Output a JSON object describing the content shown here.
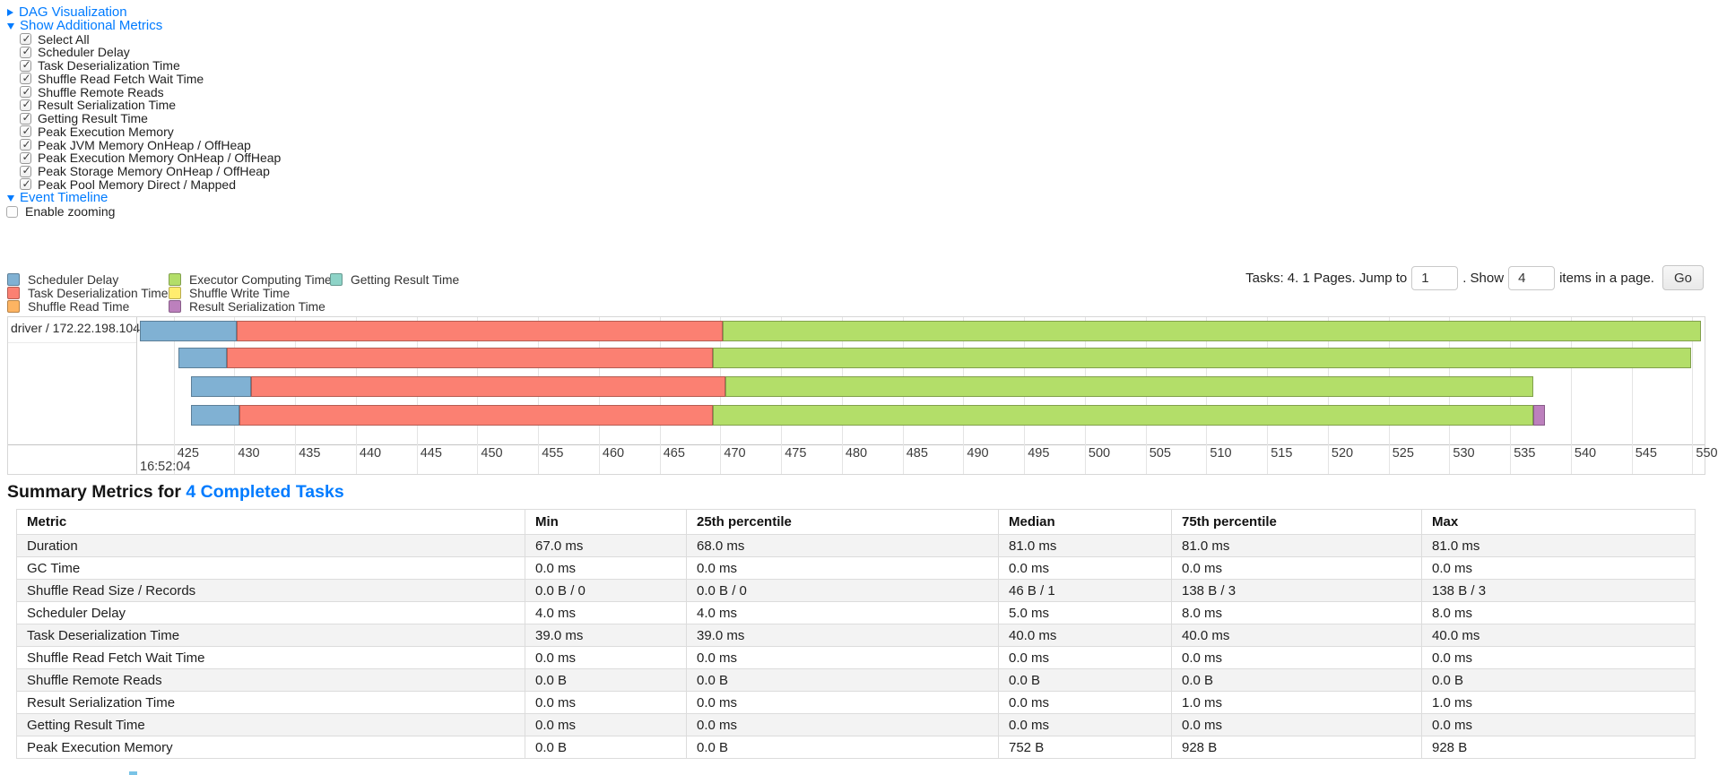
{
  "colors": {
    "link": "#007bff",
    "scheduler_delay": "#80B1D3",
    "task_deserialization": "#FB8072",
    "shuffle_read": "#FDB462",
    "executor_computing": "#B3DE69",
    "shuffle_write": "#FFED6F",
    "result_serialization": "#BC80BD",
    "getting_result": "#8DD3C7"
  },
  "sections": {
    "dag": {
      "label": "DAG Visualization",
      "expanded": false
    },
    "metrics": {
      "label": "Show Additional Metrics",
      "expanded": true
    },
    "timeline": {
      "label": "Event Timeline",
      "expanded": true
    }
  },
  "metric_checkboxes": [
    {
      "label": "Select All",
      "checked": true
    },
    {
      "label": "Scheduler Delay",
      "checked": true
    },
    {
      "label": "Task Deserialization Time",
      "checked": true
    },
    {
      "label": "Shuffle Read Fetch Wait Time",
      "checked": true
    },
    {
      "label": "Shuffle Remote Reads",
      "checked": true
    },
    {
      "label": "Result Serialization Time",
      "checked": true
    },
    {
      "label": "Getting Result Time",
      "checked": true
    },
    {
      "label": "Peak Execution Memory",
      "checked": true
    },
    {
      "label": "Peak JVM Memory OnHeap / OffHeap",
      "checked": true
    },
    {
      "label": "Peak Execution Memory OnHeap / OffHeap",
      "checked": true
    },
    {
      "label": "Peak Storage Memory OnHeap / OffHeap",
      "checked": true
    },
    {
      "label": "Peak Pool Memory Direct / Mapped",
      "checked": true
    }
  ],
  "enable_zooming": {
    "label": "Enable zooming",
    "checked": false
  },
  "legend": {
    "columns": [
      [
        {
          "label": "Scheduler Delay",
          "key": "scheduler_delay"
        },
        {
          "label": "Task Deserialization Time",
          "key": "task_deserialization"
        },
        {
          "label": "Shuffle Read Time",
          "key": "shuffle_read"
        }
      ],
      [
        {
          "label": "Executor Computing Time",
          "key": "executor_computing"
        },
        {
          "label": "Shuffle Write Time",
          "key": "shuffle_write"
        },
        {
          "label": "Result Serialization Time",
          "key": "result_serialization"
        }
      ],
      [
        {
          "label": "Getting Result Time",
          "key": "getting_result"
        }
      ]
    ]
  },
  "pagination": {
    "tasks_text": "Tasks: 4. 1 Pages. Jump to",
    "jump_value": "1",
    "show_text": ". Show",
    "show_value": "4",
    "suffix_text": "items in a page.",
    "go_label": "Go"
  },
  "timeline": {
    "group_label": "driver / 172.22.198.104",
    "axis": {
      "t_min": 422,
      "t_max": 551,
      "tick_start": 425,
      "tick_end": 550,
      "tick_step": 5,
      "major_tick_label": "16:52:04"
    },
    "tasks": [
      {
        "start": 422.2,
        "segments": [
          {
            "key": "scheduler_delay",
            "ms": 8
          },
          {
            "key": "task_deserialization",
            "ms": 40
          },
          {
            "key": "executor_computing",
            "ms": 80.5
          }
        ]
      },
      {
        "start": 425.4,
        "segments": [
          {
            "key": "scheduler_delay",
            "ms": 4
          },
          {
            "key": "task_deserialization",
            "ms": 40
          },
          {
            "key": "executor_computing",
            "ms": 80.5
          }
        ]
      },
      {
        "start": 426.4,
        "segments": [
          {
            "key": "scheduler_delay",
            "ms": 5
          },
          {
            "key": "task_deserialization",
            "ms": 39
          },
          {
            "key": "executor_computing",
            "ms": 66.5
          }
        ]
      },
      {
        "start": 426.4,
        "segments": [
          {
            "key": "scheduler_delay",
            "ms": 4
          },
          {
            "key": "task_deserialization",
            "ms": 39
          },
          {
            "key": "executor_computing",
            "ms": 67.5
          },
          {
            "key": "result_serialization",
            "ms": 1
          }
        ]
      }
    ]
  },
  "summary": {
    "title_prefix": "Summary Metrics for",
    "title_link": "4 Completed Tasks",
    "columns": [
      "Metric",
      "Min",
      "25th percentile",
      "Median",
      "75th percentile",
      "Max"
    ],
    "rows": [
      {
        "metric": "Duration",
        "values": [
          "67.0 ms",
          "68.0 ms",
          "81.0 ms",
          "81.0 ms",
          "81.0 ms"
        ]
      },
      {
        "metric": "GC Time",
        "values": [
          "0.0 ms",
          "0.0 ms",
          "0.0 ms",
          "0.0 ms",
          "0.0 ms"
        ]
      },
      {
        "metric": "Shuffle Read Size / Records",
        "values": [
          "0.0 B / 0",
          "0.0 B / 0",
          "46 B / 1",
          "138 B / 3",
          "138 B / 3"
        ]
      },
      {
        "metric": "Scheduler Delay",
        "values": [
          "4.0 ms",
          "4.0 ms",
          "5.0 ms",
          "8.0 ms",
          "8.0 ms"
        ]
      },
      {
        "metric": "Task Deserialization Time",
        "values": [
          "39.0 ms",
          "39.0 ms",
          "40.0 ms",
          "40.0 ms",
          "40.0 ms"
        ]
      },
      {
        "metric": "Shuffle Read Fetch Wait Time",
        "values": [
          "0.0 ms",
          "0.0 ms",
          "0.0 ms",
          "0.0 ms",
          "0.0 ms"
        ]
      },
      {
        "metric": "Shuffle Remote Reads",
        "values": [
          "0.0 B",
          "0.0 B",
          "0.0 B",
          "0.0 B",
          "0.0 B"
        ]
      },
      {
        "metric": "Result Serialization Time",
        "values": [
          "0.0 ms",
          "0.0 ms",
          "0.0 ms",
          "1.0 ms",
          "1.0 ms"
        ]
      },
      {
        "metric": "Getting Result Time",
        "values": [
          "0.0 ms",
          "0.0 ms",
          "0.0 ms",
          "0.0 ms",
          "0.0 ms"
        ]
      },
      {
        "metric": "Peak Execution Memory",
        "values": [
          "0.0 B",
          "0.0 B",
          "752 B",
          "928 B",
          "928 B"
        ]
      }
    ]
  }
}
